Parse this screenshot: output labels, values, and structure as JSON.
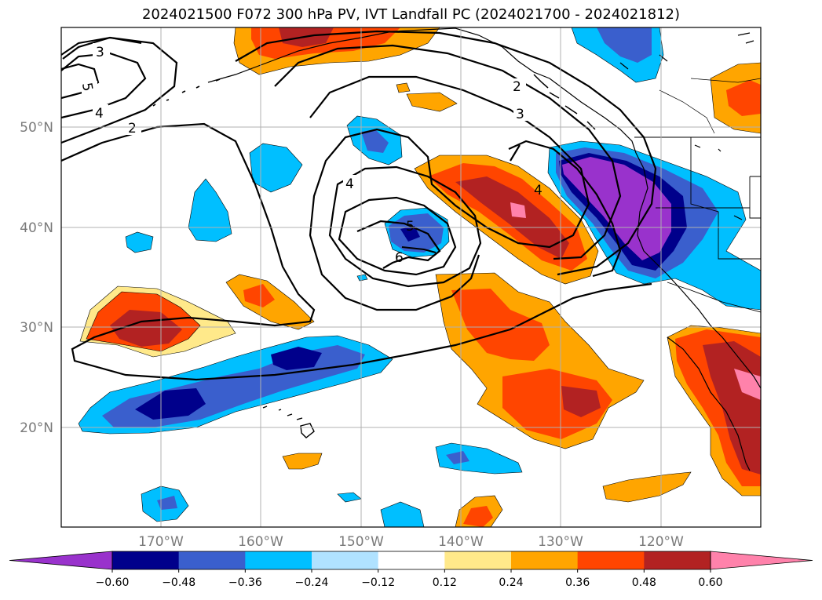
{
  "title": "2024021500 F072 300 hPa PV, IVT Landfall PC (2024021700 - 2024021812)",
  "map": {
    "projection": "PlateCarree",
    "lon_range": [
      -180,
      -110
    ],
    "lat_range": [
      10,
      60
    ],
    "lon_ticks": [
      {
        "value": -170,
        "label": "170°W"
      },
      {
        "value": -160,
        "label": "160°W"
      },
      {
        "value": -150,
        "label": "150°W"
      },
      {
        "value": -140,
        "label": "140°W"
      },
      {
        "value": -130,
        "label": "130°W"
      },
      {
        "value": -120,
        "label": "120°W"
      }
    ],
    "lat_ticks": [
      {
        "value": 20,
        "label": "20°N"
      },
      {
        "value": 30,
        "label": "30°N"
      },
      {
        "value": 40,
        "label": "40°N"
      },
      {
        "value": 50,
        "label": "50°N"
      }
    ],
    "gridlines": true
  },
  "colorbar": {
    "extend": "both",
    "ticks": [
      "−0.60",
      "−0.48",
      "−0.36",
      "−0.24",
      "−0.12",
      "0.12",
      "0.24",
      "0.36",
      "0.48",
      "0.60"
    ],
    "colors": [
      "#9932cc",
      "#00008b",
      "#3a5fcd",
      "#00bfff",
      "#b0e2ff",
      "#ffffff",
      "#ffe98a",
      "#ffa500",
      "#ff4500",
      "#b22222",
      "#ff82ab"
    ]
  },
  "contour_labels": [
    "3",
    "5",
    "4",
    "2",
    "2",
    "3",
    "4",
    "4",
    "5",
    "6"
  ],
  "colors": {
    "coast": "#000000",
    "grid": "#b0b0b0",
    "tick_label": "#7a7a7a"
  }
}
